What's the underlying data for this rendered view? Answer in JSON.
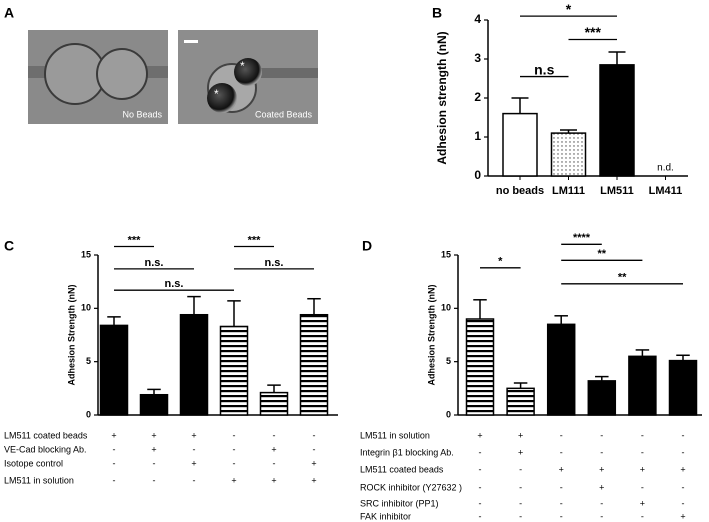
{
  "images": {
    "panel": "A",
    "captions": [
      "No Beads",
      "Coated Beads"
    ]
  },
  "chart_data": [
    {
      "type": "bar",
      "panel": "B",
      "y_label": "Adhesion strength (nN)",
      "categories": [
        "no beads",
        "LM111",
        "LM511",
        "LM411"
      ],
      "values": [
        1.6,
        1.1,
        2.85,
        null
      ],
      "errors": [
        0.4,
        0.08,
        0.33,
        null
      ],
      "fills": [
        "white",
        "dots",
        "black",
        "black"
      ],
      "ylim": [
        0,
        4
      ],
      "yticks": [
        0,
        1,
        2,
        3,
        4
      ],
      "annotations": [
        {
          "text": "n.d.",
          "category": 3
        }
      ],
      "brackets": [
        {
          "from": 0,
          "to": 1,
          "y": 2.55,
          "label": "n.s"
        },
        {
          "from": 1,
          "to": 2,
          "y": 3.5,
          "label": "***"
        },
        {
          "from": 0,
          "to": 2,
          "y": 4.1,
          "label": "*"
        }
      ]
    },
    {
      "type": "bar",
      "panel": "C",
      "y_label": "Adhesion Strength (nN)",
      "values": [
        8.4,
        1.9,
        9.4,
        8.3,
        2.1,
        9.4
      ],
      "errors": [
        0.8,
        0.5,
        1.7,
        2.4,
        0.7,
        1.5
      ],
      "fills": [
        "black",
        "black",
        "black",
        "stripes",
        "stripes",
        "stripes"
      ],
      "ylim": [
        0,
        15
      ],
      "yticks": [
        0,
        5,
        10,
        15
      ],
      "conditions": [
        {
          "label": "LM511 coated beads",
          "marks": [
            "+",
            "+",
            "+",
            "-",
            "-",
            "-"
          ]
        },
        {
          "label": "VE-Cad blocking Ab.",
          "marks": [
            "-",
            "+",
            "-",
            "-",
            "+",
            "-"
          ]
        },
        {
          "label": "Isotope control",
          "marks": [
            "-",
            "-",
            "+",
            "-",
            "-",
            "+"
          ]
        },
        {
          "label": "LM511 in solution",
          "marks": [
            "-",
            "-",
            "-",
            "+",
            "+",
            "+"
          ]
        }
      ],
      "brackets": [
        {
          "from": 0,
          "to": 1,
          "y": 15.8,
          "label": "***"
        },
        {
          "from": 0,
          "to": 2,
          "y": 13.7,
          "label": "n.s."
        },
        {
          "from": 0,
          "to": 3,
          "y": 11.7,
          "label": "n.s."
        },
        {
          "from": 3,
          "to": 4,
          "y": 15.8,
          "label": "***"
        },
        {
          "from": 3,
          "to": 5,
          "y": 13.7,
          "label": "n.s."
        }
      ]
    },
    {
      "type": "bar",
      "panel": "D",
      "y_label": "Adhesion Strength (nN)",
      "values": [
        9.0,
        2.5,
        8.5,
        3.2,
        5.5,
        5.1
      ],
      "errors": [
        1.8,
        0.5,
        0.8,
        0.4,
        0.6,
        0.5
      ],
      "fills": [
        "stripes",
        "stripes",
        "black",
        "black",
        "black",
        "black"
      ],
      "ylim": [
        0,
        15
      ],
      "yticks": [
        0,
        5,
        10,
        15
      ],
      "conditions": [
        {
          "label": "LM511 in solution",
          "marks": [
            "+",
            "+",
            "-",
            "-",
            "-",
            "-"
          ]
        },
        {
          "label": "Integrin β1 blocking Ab.",
          "marks": [
            "-",
            "+",
            "-",
            "-",
            "-",
            "-"
          ]
        },
        {
          "label": "LM511 coated beads",
          "marks": [
            "-",
            "-",
            "+",
            "+",
            "+",
            "+"
          ]
        },
        {
          "label": "ROCK inhibitor (Y27632 )",
          "marks": [
            "-",
            "-",
            "-",
            "+",
            "-",
            "-"
          ]
        },
        {
          "label": "SRC inhibitor (PP1)",
          "marks": [
            "-",
            "-",
            "-",
            "-",
            "+",
            "-"
          ]
        },
        {
          "label": "FAK inhibitor",
          "marks": [
            "-",
            "-",
            "-",
            "-",
            "-",
            "+"
          ]
        }
      ],
      "brackets": [
        {
          "from": 0,
          "to": 1,
          "y": 13.8,
          "label": "*"
        },
        {
          "from": 2,
          "to": 3,
          "y": 16.0,
          "label": "****"
        },
        {
          "from": 2,
          "to": 4,
          "y": 14.5,
          "label": "**"
        },
        {
          "from": 2,
          "to": 5,
          "y": 12.3,
          "label": "**"
        }
      ]
    }
  ]
}
